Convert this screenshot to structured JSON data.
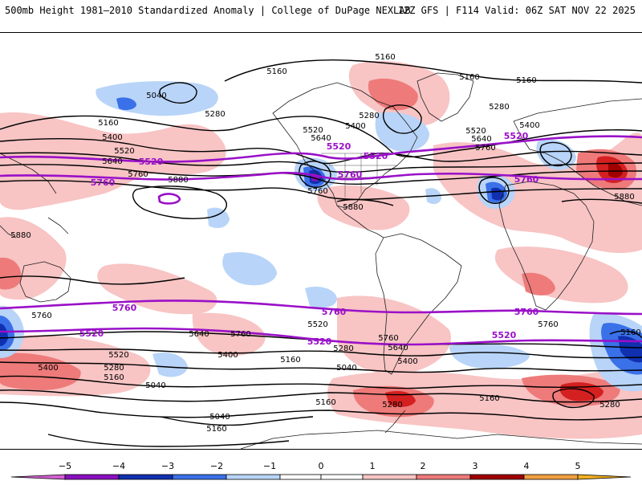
{
  "header": {
    "title": "500mb Height 1981–2010 Standardized Anomaly | College of DuPage NEXLAB",
    "run_info": "12Z GFS | F114 Valid: 06Z SAT NOV 22 2025"
  },
  "colors": {
    "m5": "#d060d0",
    "m4": "#8a10c0",
    "m3": "#1030b0",
    "m2": "#3a70e8",
    "m1": "#b8d4f8",
    "zero": "#ffffff",
    "p1": "#f8c4c4",
    "p2": "#ee7a7a",
    "p3": "#d42020",
    "p4": "#a00000",
    "p5": "#f0b020",
    "contour": "#000000",
    "highlight": "#9a10c8"
  },
  "colorbar": {
    "ticks": [
      "−5",
      "−4",
      "−3",
      "−2",
      "−1",
      "0",
      "1",
      "2",
      "3",
      "4",
      "5"
    ]
  },
  "contour_labels": {
    "black": [
      "5160",
      "5160",
      "5160",
      "5040",
      "5280",
      "5280",
      "5160",
      "5400",
      "5520",
      "5640",
      "5280",
      "5400",
      "5520",
      "5640",
      "5520",
      "5640",
      "5760",
      "5400",
      "5160",
      "5760",
      "5880",
      "5760",
      "5880",
      "5880",
      "5880",
      "5760",
      "5640",
      "5760",
      "5520",
      "5280",
      "5400",
      "5640",
      "5760",
      "5760",
      "5520",
      "5400",
      "5280",
      "5160",
      "5160",
      "5400",
      "5040",
      "5040",
      "5160",
      "5280",
      "5160",
      "5280",
      "5160",
      "5040",
      "5160"
    ],
    "highlight": [
      "5520",
      "5520",
      "5760",
      "5760",
      "5760",
      "5520",
      "5760",
      "5760",
      "5520",
      "5520",
      "5520",
      "5760",
      "5520"
    ]
  }
}
